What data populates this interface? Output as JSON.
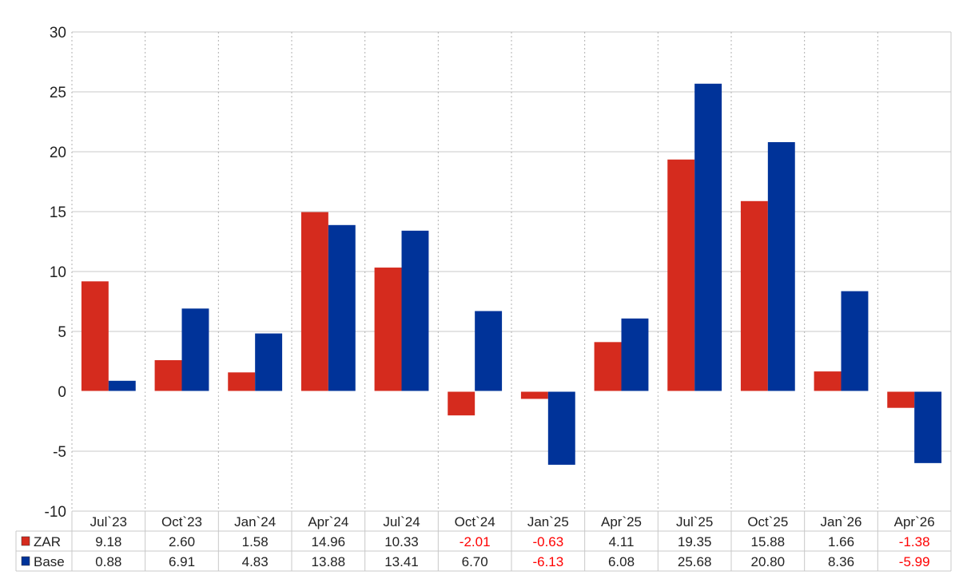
{
  "chart_data": {
    "type": "bar",
    "categories": [
      "Jul`23",
      "Oct`23",
      "Jan`24",
      "Apr`24",
      "Jul`24",
      "Oct`24",
      "Jan`25",
      "Apr`25",
      "Jul`25",
      "Oct`25",
      "Jan`26",
      "Apr`26"
    ],
    "series": [
      {
        "name": "ZAR",
        "color": "#d52b1e",
        "values": [
          9.18,
          2.6,
          1.58,
          14.96,
          10.33,
          -2.01,
          -0.63,
          4.11,
          19.35,
          15.88,
          1.66,
          -1.38
        ],
        "labels": [
          "9.18",
          "2.60",
          "1.58",
          "14.96",
          "10.33",
          "-2.01",
          "-0.63",
          "4.11",
          "19.35",
          "15.88",
          "1.66",
          "-1.38"
        ]
      },
      {
        "name": "Base",
        "color": "#003399",
        "values": [
          0.88,
          6.91,
          4.83,
          13.88,
          13.41,
          6.7,
          -6.13,
          6.08,
          25.68,
          20.8,
          8.36,
          -5.99
        ],
        "labels": [
          "0.88",
          "6.91",
          "4.83",
          "13.88",
          "13.41",
          "6.70",
          "-6.13",
          "6.08",
          "25.68",
          "20.80",
          "8.36",
          "-5.99"
        ]
      }
    ],
    "ylim": [
      -10,
      30
    ],
    "yticks": [
      {
        "value": -10,
        "label": "-10"
      },
      {
        "value": -5,
        "label": "-5"
      },
      {
        "value": 0,
        "label": "0"
      },
      {
        "value": 5,
        "label": "5"
      },
      {
        "value": 10,
        "label": "10"
      },
      {
        "value": 15,
        "label": "15"
      },
      {
        "value": 20,
        "label": "20"
      },
      {
        "value": 25,
        "label": "25"
      },
      {
        "value": 30,
        "label": "30"
      }
    ],
    "grid": true,
    "legend_placement": "data-table-left",
    "negative_value_color": "#ff0000",
    "title": "",
    "xlabel": "",
    "ylabel": ""
  }
}
